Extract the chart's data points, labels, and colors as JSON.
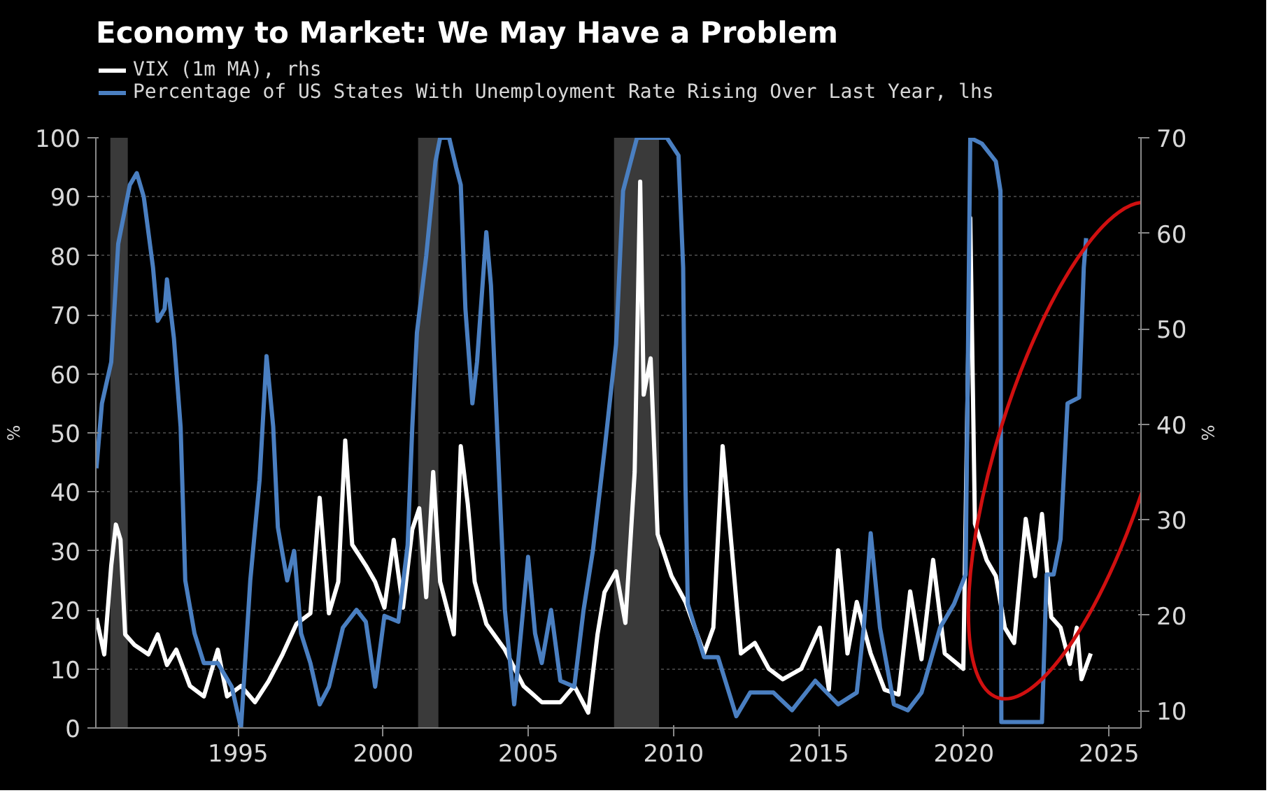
{
  "chart_data": {
    "type": "line",
    "title": "Economy to Market: We May Have a Problem",
    "ylabel": "%",
    "y2label": "%",
    "xlim": [
      1990.1,
      2026.1
    ],
    "xticks": [
      1995,
      2000,
      2005,
      2010,
      2015,
      2020,
      2025
    ],
    "ylim": [
      0,
      100
    ],
    "yticks": [
      0,
      10,
      20,
      30,
      40,
      50,
      60,
      70,
      80,
      90,
      100
    ],
    "y2lim": [
      8.2,
      70
    ],
    "y2ticks": [
      10,
      20,
      30,
      40,
      50,
      60,
      70
    ],
    "grid": "y",
    "legend": "top left",
    "line_style": "solid",
    "bands": [
      {
        "axis": "x",
        "from": 1990.6,
        "to": 1991.2,
        "color": "#3a3a3a"
      },
      {
        "axis": "x",
        "from": 2001.2,
        "to": 2001.9,
        "color": "#3a3a3a"
      },
      {
        "axis": "x",
        "from": 2007.95,
        "to": 2009.5,
        "color": "#3a3a3a"
      }
    ],
    "series": [
      {
        "name": "VIX (1m MA), rhs",
        "color": "#ffffff",
        "axis": "y2",
        "x": [
          1990.12,
          1990.39,
          1990.63,
          1990.79,
          1990.95,
          1991.11,
          1991.43,
          1991.91,
          1992.23,
          1992.55,
          1992.87,
          1993.34,
          1993.82,
          1994.3,
          1994.62,
          1995.1,
          1995.58,
          1996.05,
          1996.53,
          1997.01,
          1997.49,
          1997.81,
          1998.13,
          1998.45,
          1998.69,
          1998.93,
          1999.4,
          1999.72,
          2000.04,
          2000.36,
          2000.68,
          2001.0,
          2001.24,
          2001.48,
          2001.72,
          2001.96,
          2002.43,
          2002.67,
          2002.91,
          2003.15,
          2003.55,
          2004.19,
          2004.83,
          2005.46,
          2006.1,
          2006.58,
          2007.06,
          2007.38,
          2007.62,
          2008.02,
          2008.34,
          2008.66,
          2008.85,
          2008.97,
          2009.21,
          2009.45,
          2009.93,
          2010.41,
          2011.05,
          2011.37,
          2011.69,
          2012.01,
          2012.32,
          2012.8,
          2013.28,
          2013.76,
          2014.4,
          2015.04,
          2015.35,
          2015.67,
          2015.99,
          2016.31,
          2016.79,
          2017.27,
          2017.75,
          2018.15,
          2018.54,
          2018.94,
          2019.34,
          2019.98,
          2020.22,
          2020.38,
          2020.78,
          2021.1,
          2021.41,
          2021.73,
          2022.13,
          2022.45,
          2022.69,
          2023.01,
          2023.33,
          2023.65,
          2023.89,
          2024.05,
          2024.37
        ],
        "values": [
          19.7,
          15.9,
          25.2,
          29.5,
          27.9,
          18.0,
          16.9,
          15.9,
          18.0,
          14.8,
          16.4,
          12.6,
          11.5,
          16.4,
          11.5,
          12.6,
          10.9,
          13.1,
          15.9,
          19.1,
          20.2,
          32.3,
          20.2,
          23.5,
          38.3,
          27.4,
          25.2,
          23.5,
          20.8,
          27.9,
          20.8,
          29.0,
          31.2,
          21.9,
          35.0,
          23.5,
          18.0,
          37.7,
          31.7,
          23.5,
          19.1,
          16.4,
          12.6,
          10.9,
          10.9,
          12.6,
          9.8,
          18.0,
          22.4,
          24.6,
          19.2,
          35.0,
          65.4,
          43.1,
          46.9,
          28.5,
          24.1,
          21.4,
          16.0,
          18.7,
          37.7,
          26.8,
          16.0,
          17.1,
          14.4,
          13.3,
          14.4,
          18.7,
          12.2,
          26.8,
          16.0,
          21.4,
          16.0,
          12.2,
          11.7,
          22.5,
          15.4,
          25.8,
          16.0,
          14.4,
          61.6,
          29.6,
          25.8,
          24.1,
          18.7,
          17.1,
          30.1,
          24.1,
          30.6,
          19.8,
          18.7,
          14.9,
          18.7,
          13.3,
          16.0
        ]
      },
      {
        "name": "Percentage of US States With Unemployment Rate Rising Over Last Year, lhs",
        "color": "#4a7fc1",
        "x": [
          1990.12,
          1990.31,
          1990.63,
          1990.87,
          1991.27,
          1991.51,
          1991.75,
          1992.07,
          1992.23,
          1992.47,
          1992.55,
          1992.79,
          1993.02,
          1993.18,
          1993.5,
          1993.82,
          1994.3,
          1994.78,
          1995.1,
          1995.42,
          1995.74,
          1995.98,
          1996.21,
          1996.37,
          1996.69,
          1996.93,
          1997.17,
          1997.49,
          1997.81,
          1998.13,
          1998.61,
          1999.08,
          1999.4,
          1999.72,
          2000.04,
          2000.52,
          2000.84,
          2001.0,
          2001.16,
          2001.48,
          2001.8,
          2001.96,
          2002.27,
          2002.51,
          2002.67,
          2002.83,
          2003.07,
          2003.23,
          2003.55,
          2003.71,
          2004.03,
          2004.19,
          2004.51,
          2004.99,
          2005.23,
          2005.46,
          2005.78,
          2006.1,
          2006.58,
          2006.9,
          2007.22,
          2007.62,
          2008.02,
          2008.26,
          2008.74,
          2009.77,
          2010.17,
          2010.33,
          2010.41,
          2010.49,
          2011.05,
          2011.53,
          2012.16,
          2012.64,
          2013.44,
          2014.08,
          2014.88,
          2015.67,
          2016.31,
          2016.55,
          2016.79,
          2017.11,
          2017.59,
          2018.07,
          2018.54,
          2019.18,
          2019.66,
          2020.06,
          2020.22,
          2020.62,
          2021.1,
          2021.26,
          2021.29,
          2021.57,
          2022.69,
          2022.85,
          2023.09,
          2023.33,
          2023.57,
          2023.97,
          2024.13,
          2024.21
        ],
        "values": [
          44,
          55,
          62,
          82,
          92,
          94,
          90,
          78,
          69,
          71,
          76,
          66,
          51,
          25,
          16,
          11,
          11,
          7,
          0,
          25,
          42,
          63,
          51,
          34,
          25,
          30,
          16,
          11,
          4,
          7,
          17,
          20,
          18,
          7,
          19,
          18,
          31,
          51,
          67,
          80,
          96,
          100,
          100,
          95,
          92,
          71,
          55,
          62,
          84,
          75,
          38,
          20,
          4,
          29,
          16,
          11,
          20,
          8,
          7,
          20,
          30,
          47,
          65,
          91,
          100,
          100,
          97,
          78,
          41,
          21,
          12,
          12,
          2,
          6,
          6,
          3,
          8,
          4,
          6,
          17,
          33,
          17,
          4,
          3,
          6,
          17,
          21,
          26,
          100,
          99,
          96,
          91,
          1,
          1,
          1,
          26,
          26,
          32,
          55,
          56,
          78,
          83
        ]
      }
    ]
  }
}
